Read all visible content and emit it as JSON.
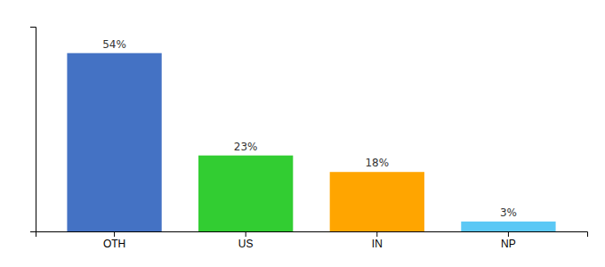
{
  "chart_data": {
    "type": "bar",
    "categories": [
      "OTH",
      "US",
      "IN",
      "NP"
    ],
    "values": [
      54,
      23,
      18,
      3
    ],
    "value_labels": [
      "54%",
      "23%",
      "18%",
      "3%"
    ],
    "colors": [
      "#4472C4",
      "#32CD32",
      "#FFA500",
      "#5BC8F5"
    ],
    "ylim": [
      0,
      62
    ],
    "yticks": [],
    "tick_labels": "x",
    "data_labels": true,
    "grid": false
  }
}
